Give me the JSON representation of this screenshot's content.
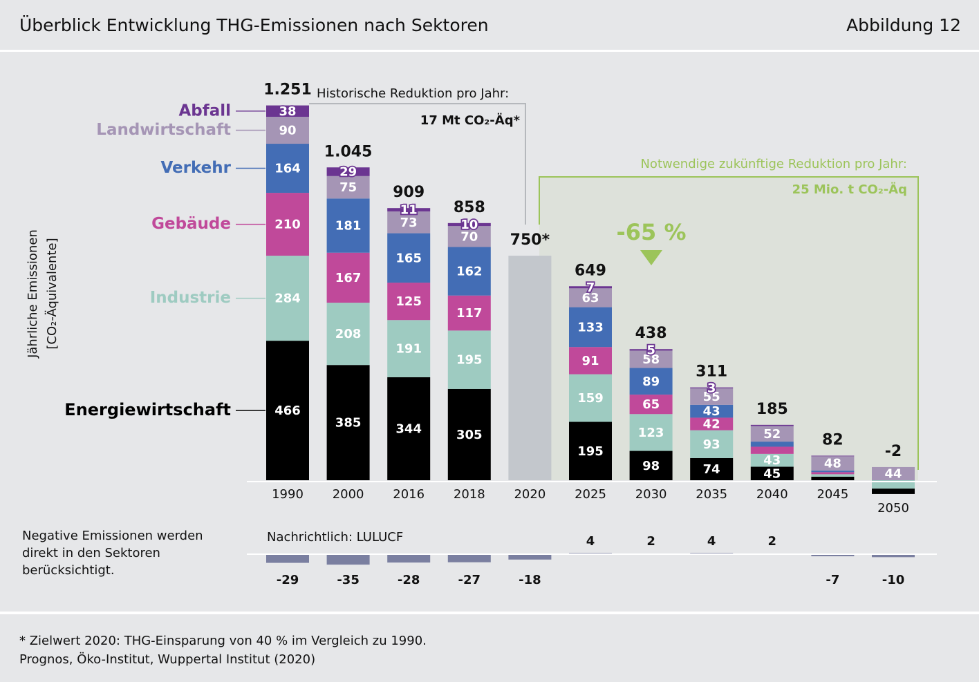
{
  "chart_data": {
    "type": "stacked-bar",
    "title": "Überblick Entwicklung THG-Emissionen nach Sektoren",
    "figure_label": "Abbildung 12",
    "ylabel": [
      "Jährliche Emissionen",
      "[CO₂-Äquivalente]"
    ],
    "categories": [
      "1990",
      "2000",
      "2016",
      "2018",
      "2020",
      "2025",
      "2030",
      "2035",
      "2040",
      "2045",
      "2050"
    ],
    "series": [
      {
        "name": "Energiewirtschaft",
        "color": "#000000",
        "values": [
          466,
          385,
          344,
          305,
          null,
          195,
          98,
          74,
          45,
          12,
          -18
        ],
        "value_labels": [
          "466",
          "385",
          "344",
          "305",
          null,
          "195",
          "98",
          "74",
          "45",
          null,
          null
        ]
      },
      {
        "name": "Industrie",
        "color": "#9ecbc1",
        "values": [
          284,
          208,
          191,
          195,
          null,
          159,
          123,
          93,
          43,
          8,
          -28
        ],
        "value_labels": [
          "284",
          "208",
          "191",
          "195",
          null,
          "159",
          "123",
          "93",
          "43",
          null,
          null
        ]
      },
      {
        "name": "Gebäude",
        "color": "#c0499a",
        "values": [
          210,
          167,
          125,
          117,
          null,
          91,
          65,
          42,
          24,
          7,
          0
        ],
        "value_labels": [
          "210",
          "167",
          "125",
          "117",
          null,
          "91",
          "65",
          "42",
          null,
          null,
          null
        ]
      },
      {
        "name": "Verkehr",
        "color": "#436db5",
        "values": [
          164,
          181,
          165,
          162,
          null,
          133,
          89,
          43,
          17,
          5,
          0
        ],
        "value_labels": [
          "164",
          "181",
          "165",
          "162",
          null,
          "133",
          "89",
          "43",
          null,
          null,
          null
        ]
      },
      {
        "name": "Landwirtschaft",
        "color": "#a595b5",
        "values": [
          90,
          75,
          73,
          70,
          null,
          63,
          58,
          55,
          52,
          48,
          44
        ],
        "value_labels": [
          "90",
          "75",
          "73",
          "70",
          null,
          "63",
          "58",
          "55",
          "52",
          "48",
          "44"
        ]
      },
      {
        "name": "Abfall",
        "color": "#6b3591",
        "values": [
          38,
          29,
          11,
          10,
          null,
          7,
          5,
          3,
          4,
          2,
          0
        ],
        "value_labels": [
          "38",
          "29",
          "11",
          "10",
          null,
          "7",
          "5",
          "3",
          null,
          null,
          null
        ]
      }
    ],
    "totals": {
      "color": "#c3c7cc",
      "values": [
        1251,
        1045,
        909,
        858,
        750,
        649,
        438,
        311,
        185,
        82,
        -2
      ],
      "value_labels": [
        "1.251",
        "1.045",
        "909",
        "858",
        "750*",
        "649",
        "438",
        "311",
        "185",
        "82",
        "-2"
      ]
    },
    "annotations": {
      "historic_title": "Historische Reduktion pro Jahr:",
      "historic_value": "17 Mt CO₂-Äq*",
      "future_title": "Notwendige zukünftige Reduktion pro Jahr:",
      "future_value": "25 Mio. t CO₂-Äq",
      "reduction": "-65 %"
    },
    "lulucf": {
      "title": "Nachrichtlich: LULUCF",
      "color": "#7a7fa0",
      "values": [
        -29,
        -35,
        -28,
        -27,
        -18,
        4,
        2,
        4,
        2,
        -7,
        -10
      ]
    },
    "note": [
      "Negative Emissionen werden",
      "direkt in den Sektoren",
      "berücksichtigt."
    ],
    "footnote": "* Zielwert 2020: THG-Einsparung von 40 % im Vergleich zu 1990.",
    "source": "Prognos, Öko-Institut, Wuppertal Institut (2020)"
  }
}
